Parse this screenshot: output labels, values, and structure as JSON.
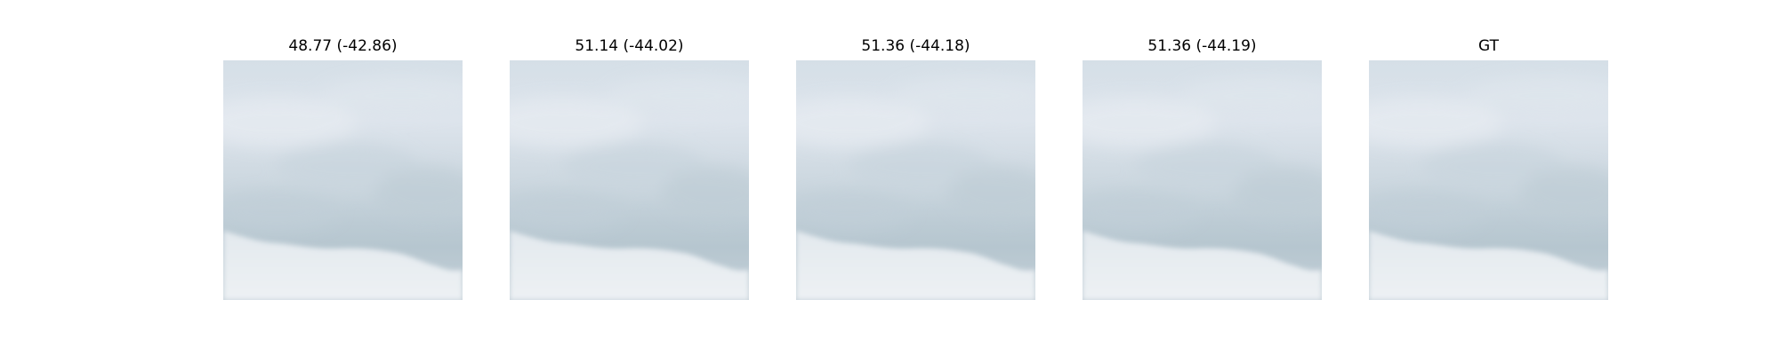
{
  "panels": [
    {
      "title": "48.77 (-42.86)"
    },
    {
      "title": "51.14 (-44.02)"
    },
    {
      "title": "51.36 (-44.18)"
    },
    {
      "title": "51.36 (-44.19)"
    },
    {
      "title": "GT"
    }
  ],
  "colors": {
    "sky_top": "#d6e0e8",
    "cloud_light": "#e2e8ef",
    "cloud_mid": "#c8d4dc",
    "cloud_dark": "#b5c5cf",
    "lower_bright": "#e9eef2"
  }
}
